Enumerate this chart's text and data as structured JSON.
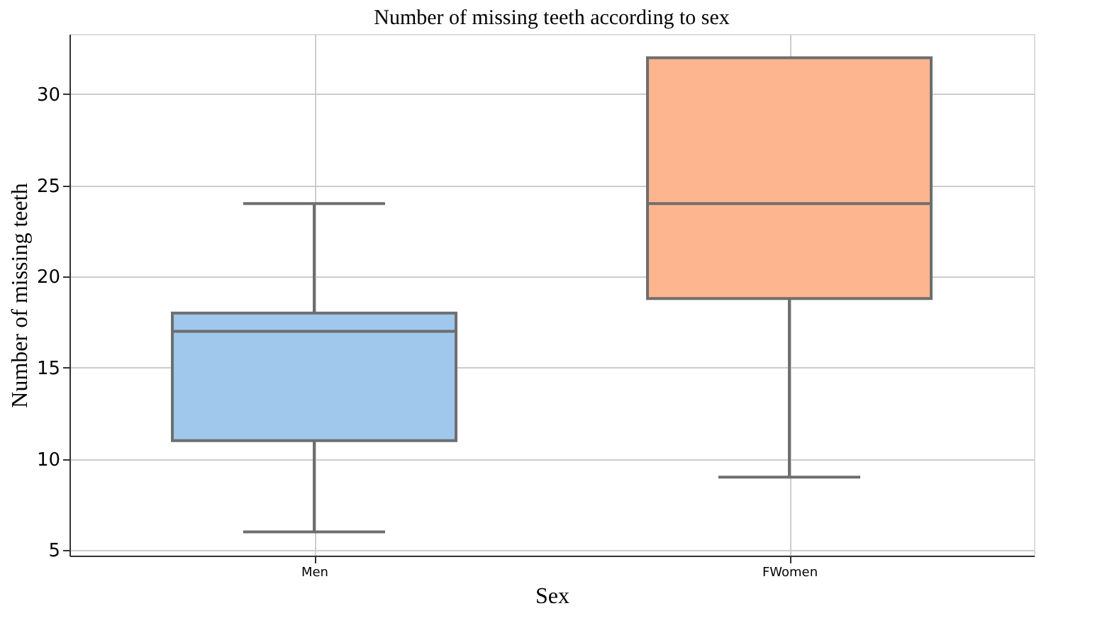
{
  "chart_data": {
    "type": "box",
    "title": "Number of missing teeth according to sex",
    "xlabel": "Sex",
    "ylabel": "Number of missing teeth",
    "categories": [
      "Men",
      "FWomen"
    ],
    "boxes": [
      {
        "low": 6,
        "q1": 11,
        "median": 17,
        "q3": 18,
        "high": 24
      },
      {
        "low": 9,
        "q1": 18.8,
        "median": 24,
        "q3": 32,
        "high": 32
      }
    ],
    "colors": [
      "#9fc8ec",
      "#fdb58f"
    ],
    "ylim": [
      4.7,
      33.3
    ],
    "yticks": [
      5,
      10,
      15,
      20,
      25,
      30
    ],
    "grid": true
  }
}
